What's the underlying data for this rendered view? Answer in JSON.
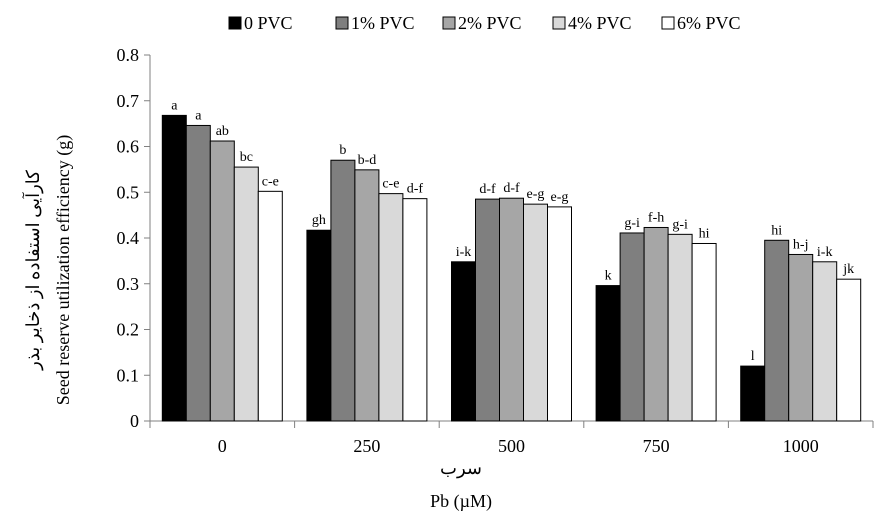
{
  "chart_data": {
    "type": "bar",
    "categories": [
      "0",
      "250",
      "500",
      "750",
      "1000"
    ],
    "xlabel_fa": "سرب",
    "xlabel": "Pb (µM)",
    "ylabel_fa": "کارآیی استفاده از ذخایر بذر",
    "ylabel": "Seed reserve utilization efficiency (g)",
    "ylim": [
      0,
      0.8
    ],
    "yticks": [
      "0",
      "0.1",
      "0.2",
      "0.3",
      "0.4",
      "0.5",
      "0.6",
      "0.7",
      "0.8"
    ],
    "grid": false,
    "legend_position": "top",
    "series": [
      {
        "name": "0 PVC",
        "color": "#000000",
        "values": [
          0.668,
          0.417,
          0.348,
          0.296,
          0.12
        ],
        "letters": [
          "a",
          "gh",
          "i-k",
          "k",
          "l"
        ]
      },
      {
        "name": "1% PVC",
        "color": "#7f7f7f",
        "values": [
          0.646,
          0.57,
          0.485,
          0.411,
          0.395
        ],
        "letters": [
          "a",
          "b",
          "d-f",
          "g-i",
          "hi"
        ]
      },
      {
        "name": "2% PVC",
        "color": "#a6a6a6",
        "values": [
          0.612,
          0.549,
          0.487,
          0.423,
          0.364
        ],
        "letters": [
          "ab",
          "b-d",
          "d-f",
          "f-h",
          "h-j"
        ]
      },
      {
        "name": "4% PVC",
        "color": "#d9d9d9",
        "values": [
          0.555,
          0.497,
          0.474,
          0.408,
          0.348
        ],
        "letters": [
          "bc",
          "c-e",
          "e-g",
          "g-i",
          "i-k"
        ]
      },
      {
        "name": "6% PVC",
        "color": "#ffffff",
        "values": [
          0.502,
          0.486,
          0.468,
          0.388,
          0.31
        ],
        "letters": [
          "c-e",
          "d-f",
          "e-g",
          "hi",
          "jk"
        ]
      }
    ]
  }
}
